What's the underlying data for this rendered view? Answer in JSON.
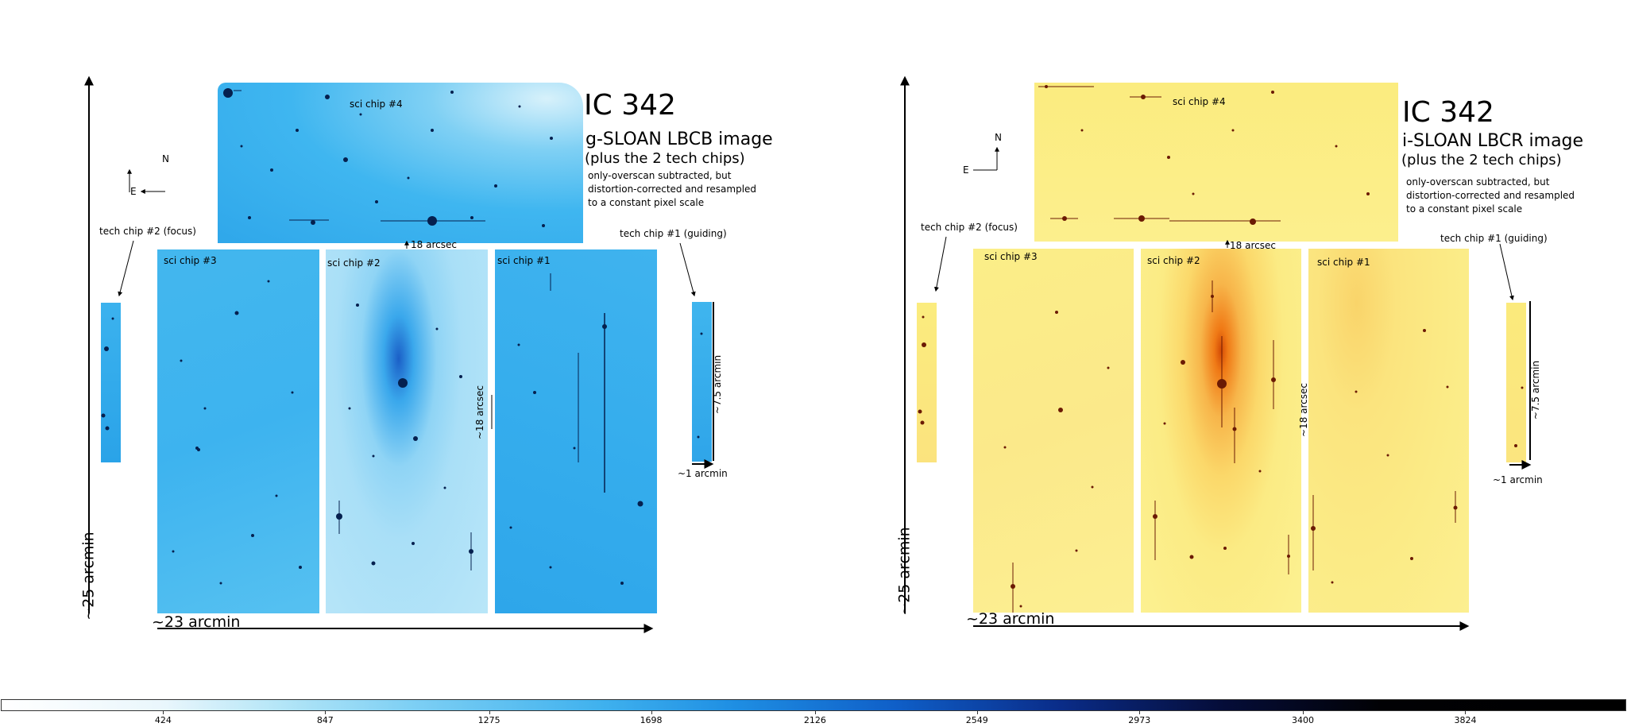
{
  "left": {
    "title": "IC 342",
    "subtitle": "g-SLOAN LBCB image",
    "subtitle2": "(plus the 2 tech chips)",
    "note": [
      "only-overscan subtracted, but",
      "distortion-corrected and resampled",
      "to a constant pixel scale"
    ],
    "chip4": "sci chip #4",
    "chip3": "sci chip #3",
    "chip2": "sci chip #2",
    "chip1": "sci chip #1",
    "tech2": "tech chip #2 (focus)",
    "tech1": "tech chip #1 (guiding)",
    "gap_h": "18 arcsec",
    "gap_v": "~18 arcsec",
    "height": "~25 arcmin",
    "width": "~23 arcmin",
    "tech_height": "~7.5 arcmin",
    "tech_width": "~1 arcmin",
    "north": "N",
    "east": "E"
  },
  "right": {
    "title": "IC 342",
    "subtitle": "i-SLOAN LBCR image",
    "subtitle2": "(plus the 2 tech chips)",
    "note": [
      "only-overscan subtracted, but",
      "distortion-corrected and resampled",
      "to a constant pixel scale"
    ],
    "chip4": "sci chip #4",
    "chip3": "sci chip #3",
    "chip2": "sci chip #2",
    "chip1": "sci chip #1",
    "tech2": "tech chip #2 (focus)",
    "tech1": "tech chip #1 (guiding)",
    "gap_h": "18 arcsec",
    "gap_v": "~18 arcsec",
    "height": "~25 arcmin",
    "width": "~23 arcmin",
    "tech_height": "~7.5 arcmin",
    "tech_width": "~1 arcmin",
    "north": "N",
    "east": "E"
  },
  "colors": {
    "g_chip_fill": "#3fb6f0",
    "g_chip_light": "#b9e6f8",
    "i_chip_fill": "#fbee8a",
    "i_chip_light": "#fff6b0",
    "galaxy_core_i": "#e8620c"
  },
  "colorbar": {
    "ticks": [
      "424",
      "847",
      "1275",
      "1698",
      "2126",
      "2549",
      "2973",
      "3400",
      "3824"
    ],
    "min": 0,
    "max": 4240
  }
}
